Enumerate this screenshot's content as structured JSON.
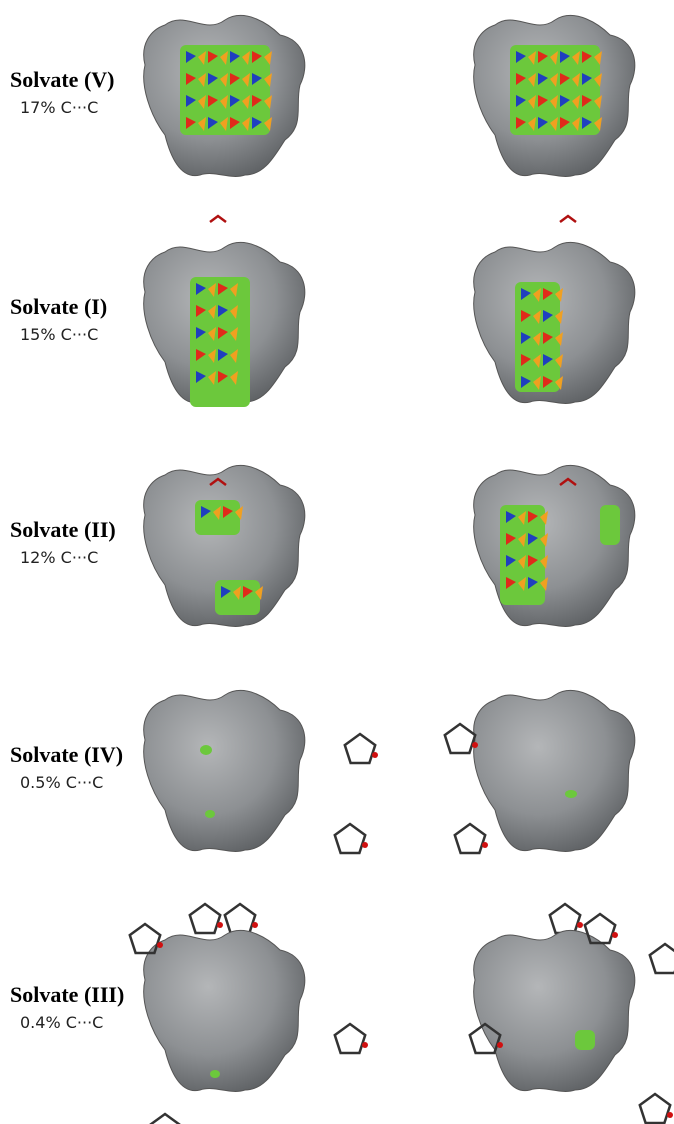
{
  "figure": {
    "rows": [
      {
        "label": "Solvate (V)",
        "contact": "17% C···C"
      },
      {
        "label": "Solvate (I)",
        "contact": "15% C···C"
      },
      {
        "label": "Solvate (II)",
        "contact": "12% C···C"
      },
      {
        "label": "Solvate (IV)",
        "contact": "0.5% C···C"
      },
      {
        "label": "Solvate (III)",
        "contact": "0.4% C···C"
      }
    ]
  }
}
